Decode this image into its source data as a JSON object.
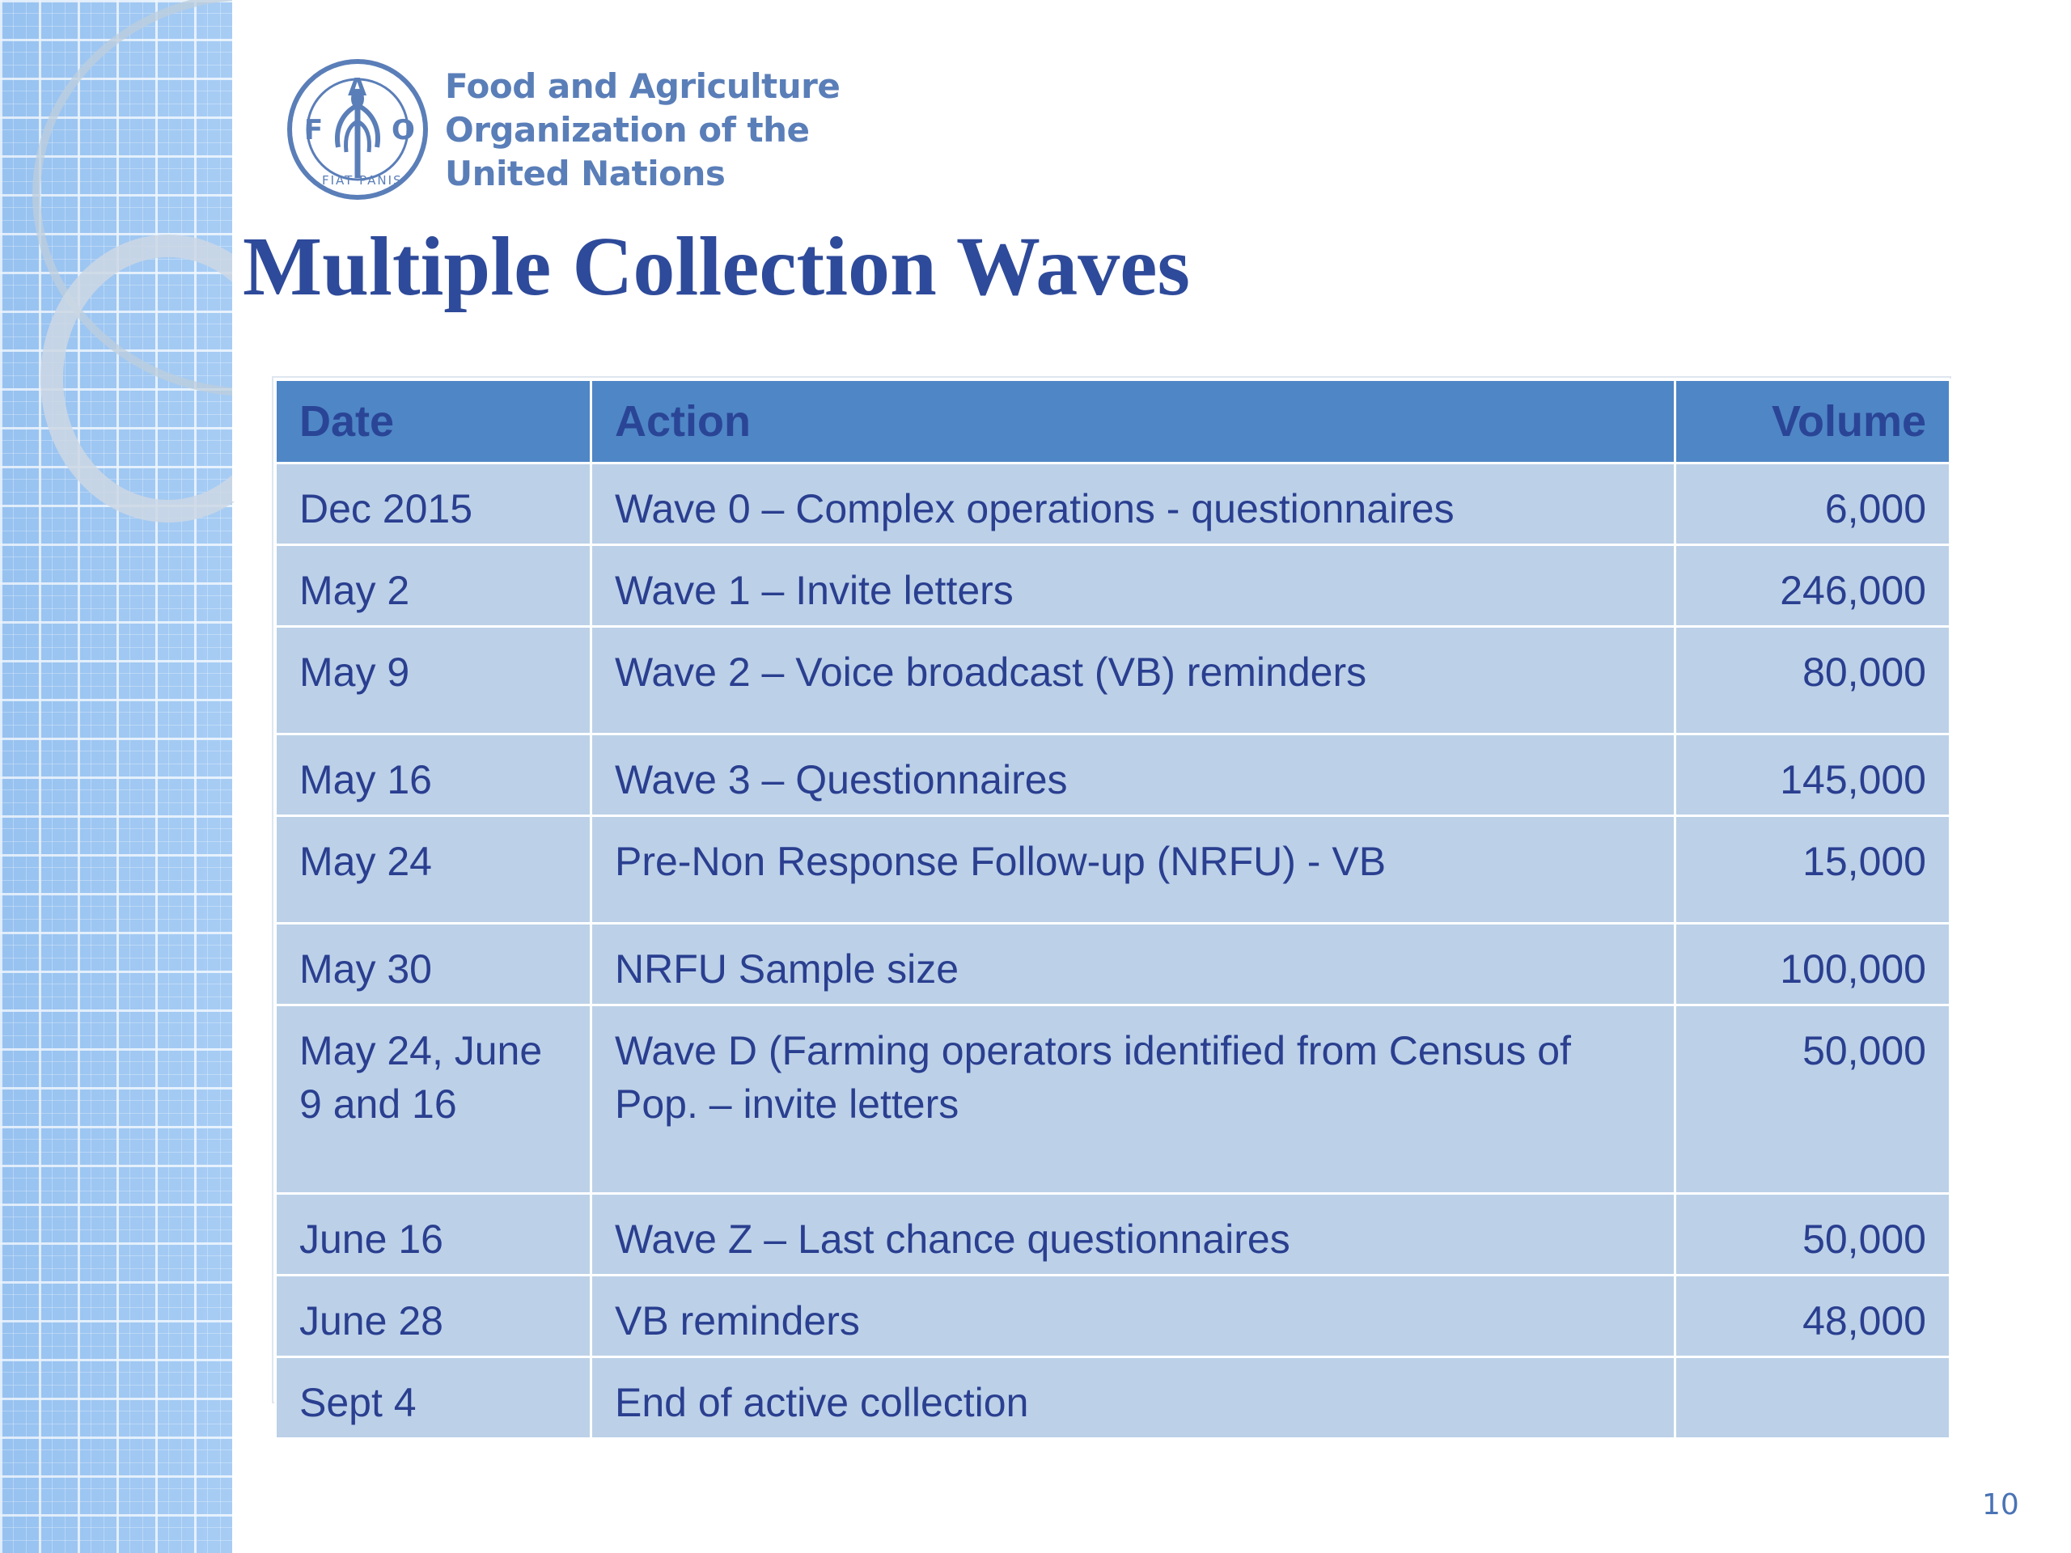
{
  "slide": {
    "title": "Multiple Collection Waves",
    "page_number": "10"
  },
  "logo": {
    "icon": "fao-emblem-icon",
    "emblem_letters": [
      "F",
      "A",
      "O"
    ],
    "motto": "FIAT PANIS",
    "lines": [
      "Food and Agriculture",
      "Organization of the",
      "United Nations"
    ],
    "color": "#5a7eb8"
  },
  "table": {
    "headers": {
      "date": "Date",
      "action": "Action",
      "volume": "Volume"
    },
    "rows": [
      {
        "date": "Dec 2015",
        "action": "Wave 0 – Complex operations - questionnaires",
        "volume": "6,000"
      },
      {
        "date": "May 2",
        "action": "Wave 1 – Invite letters",
        "volume": "246,000"
      },
      {
        "date": "May 9",
        "action": "Wave 2 – Voice broadcast (VB) reminders",
        "volume": "80,000"
      },
      {
        "date": "May 16",
        "action": "Wave 3 – Questionnaires",
        "volume": "145,000"
      },
      {
        "date": "May 24",
        "action": "Pre-Non Response Follow-up (NRFU)  - VB",
        "volume": "15,000"
      },
      {
        "date": "May 30",
        "action": "NRFU Sample size",
        "volume": "100,000"
      },
      {
        "date": "May 24, June 9 and 16",
        "action": "Wave D (Farming operators identified from Census of Pop. – invite letters",
        "volume": "50,000"
      },
      {
        "date": "June 16",
        "action": "Wave Z – Last chance questionnaires",
        "volume": "50,000"
      },
      {
        "date": "June 28",
        "action": "VB reminders",
        "volume": "48,000"
      },
      {
        "date": "Sept 4",
        "action": "End of active collection",
        "volume": ""
      }
    ]
  },
  "colors": {
    "title": "#2e4a9a",
    "header_bg": "#4f86c6",
    "cell_bg": "#bcd1e8",
    "cell_text": "#2a3f8f",
    "grid_band": "#9cc6f2"
  }
}
